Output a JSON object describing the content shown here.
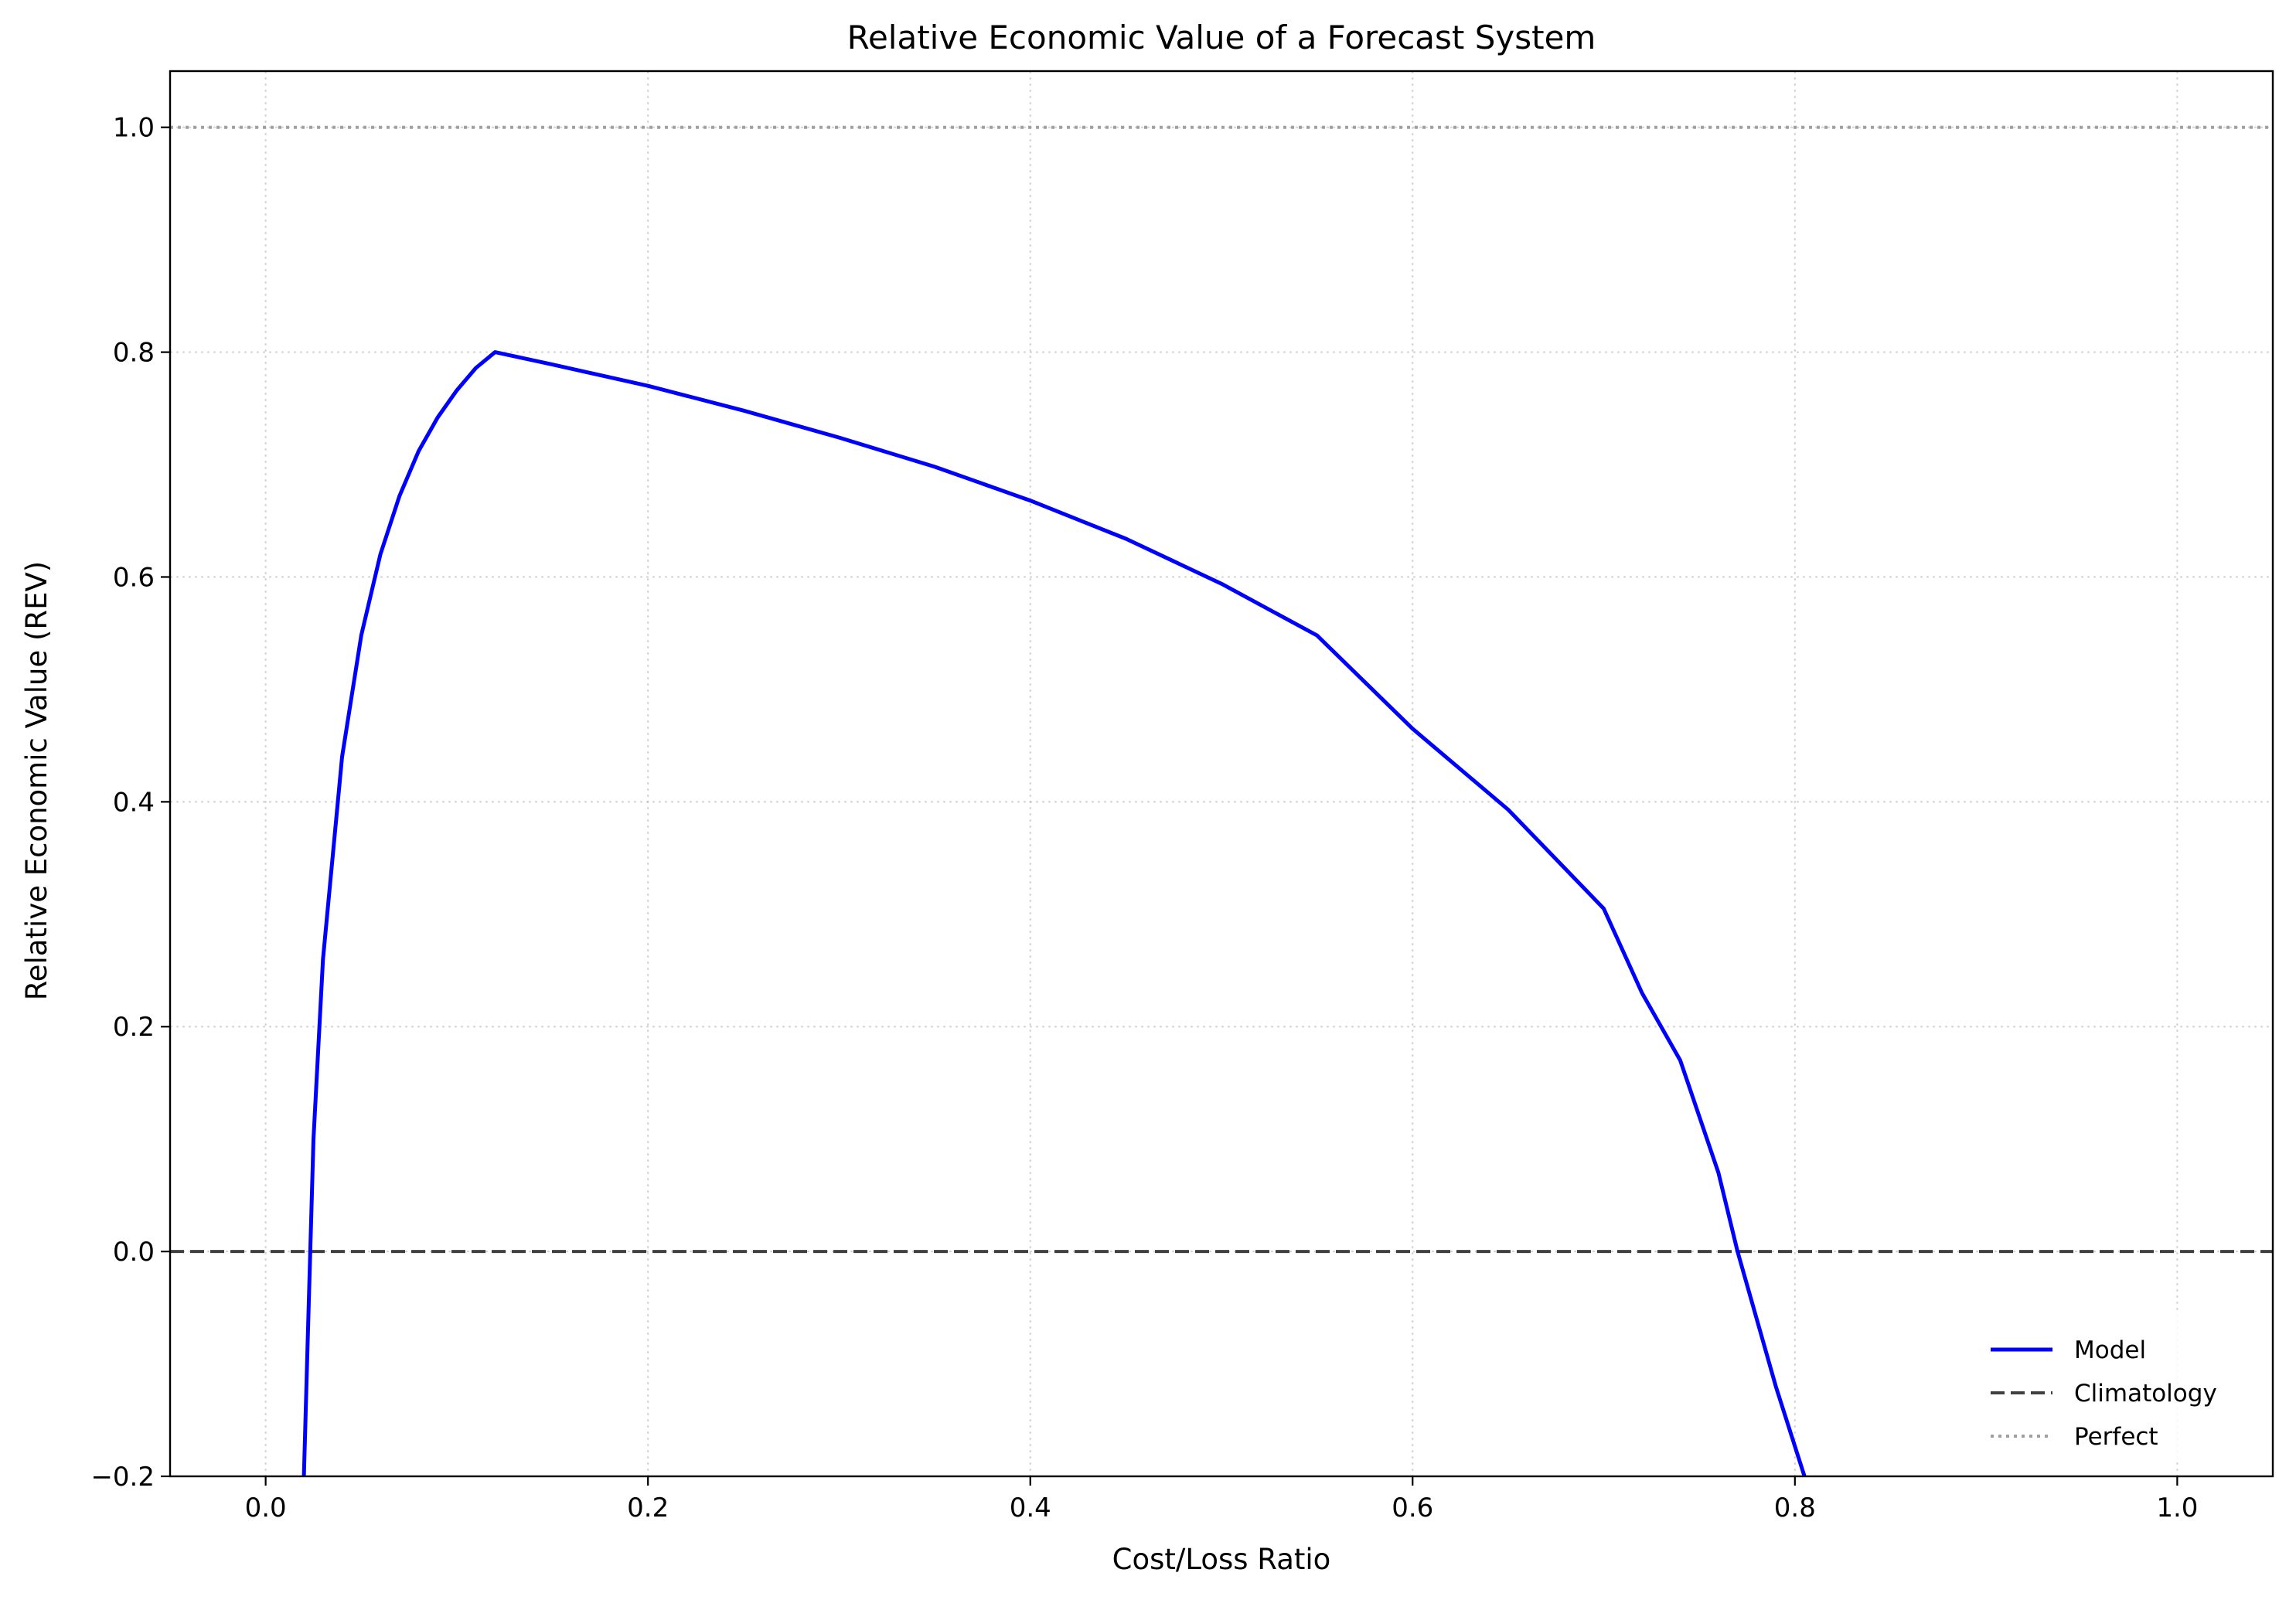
{
  "chart_data": {
    "type": "line",
    "title": "Relative Economic Value of a Forecast System",
    "xlabel": "Cost/Loss Ratio",
    "ylabel": "Relative Economic Value (REV)",
    "xlim": [
      -0.05,
      1.05
    ],
    "ylim": [
      -0.2,
      1.05
    ],
    "xticks": [
      0.0,
      0.2,
      0.4,
      0.6,
      0.8,
      1.0
    ],
    "xtick_labels": [
      "0.0",
      "0.2",
      "0.4",
      "0.6",
      "0.8",
      "1.0"
    ],
    "yticks": [
      -0.2,
      0.0,
      0.2,
      0.4,
      0.6,
      0.8,
      1.0
    ],
    "ytick_labels": [
      "−0.2",
      "0.0",
      "0.2",
      "0.4",
      "0.6",
      "0.8",
      "1.0"
    ],
    "grid": true,
    "legend_position": "bottom-right",
    "series": [
      {
        "name": "Model",
        "color": "#0000ff",
        "style": "solid",
        "x": [
          0.02,
          0.022,
          0.025,
          0.03,
          0.04,
          0.05,
          0.06,
          0.07,
          0.08,
          0.09,
          0.1,
          0.11,
          0.12,
          0.15,
          0.2,
          0.25,
          0.3,
          0.35,
          0.4,
          0.45,
          0.5,
          0.55,
          0.6,
          0.65,
          0.7,
          0.72,
          0.74,
          0.76,
          0.77,
          0.78,
          0.79,
          0.805
        ],
        "y": [
          -0.2,
          -0.08,
          0.1,
          0.26,
          0.44,
          0.548,
          0.62,
          0.672,
          0.712,
          0.742,
          0.766,
          0.786,
          0.8,
          0.789,
          0.77,
          0.748,
          0.724,
          0.698,
          0.668,
          0.634,
          0.594,
          0.548,
          0.465,
          0.393,
          0.305,
          0.23,
          0.17,
          0.07,
          0.0,
          -0.06,
          -0.12,
          -0.2
        ]
      },
      {
        "name": "Climatology",
        "color": "#404040",
        "style": "dashed",
        "x": [
          -0.05,
          1.05
        ],
        "y": [
          0.0,
          0.0
        ]
      },
      {
        "name": "Perfect",
        "color": "#a0a0a0",
        "style": "dotted",
        "x": [
          -0.05,
          1.05
        ],
        "y": [
          1.0,
          1.0
        ]
      }
    ]
  }
}
